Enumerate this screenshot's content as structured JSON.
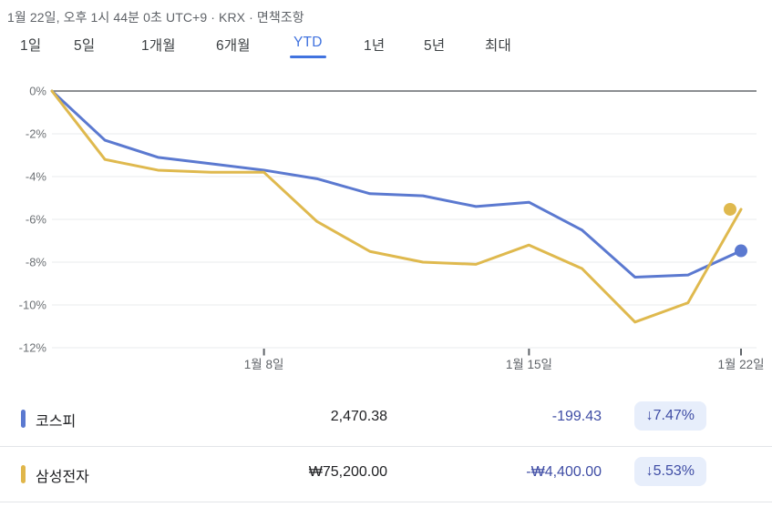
{
  "header": {
    "timestamp": "1월 22일, 오후 1시 44분 0초 UTC+9",
    "separator": "·",
    "exchange": "KRX",
    "disclaimer_label": "면책조항"
  },
  "tabs": {
    "items": [
      {
        "label": "1일",
        "active": false
      },
      {
        "label": "5일",
        "active": false
      },
      {
        "label": "1개월",
        "active": false
      },
      {
        "label": "6개월",
        "active": false
      },
      {
        "label": "YTD",
        "active": true
      },
      {
        "label": "1년",
        "active": false
      },
      {
        "label": "5년",
        "active": false
      },
      {
        "label": "최대",
        "active": false
      }
    ],
    "active_label": "YTD"
  },
  "chart_data": {
    "type": "line",
    "unit": "%",
    "grid": true,
    "ylim": [
      -12,
      0
    ],
    "x_count": 14,
    "ytick_values": [
      0,
      -2,
      -4,
      -6,
      -8,
      -10,
      -12
    ],
    "ytick_labels": [
      "0%",
      "-2%",
      "-4%",
      "-6%",
      "-8%",
      "-10%",
      "-12%"
    ],
    "xticks": [
      {
        "label": "1월 8일",
        "index": 4
      },
      {
        "label": "1월 15일",
        "index": 9
      },
      {
        "label": "1월 22일",
        "index": 13
      }
    ],
    "series": [
      {
        "key": "kospi",
        "name": "코스피",
        "color": "#5b79d0",
        "dot_dx": 0,
        "values": [
          0,
          -2.3,
          -3.1,
          -3.4,
          -3.7,
          -4.1,
          -4.8,
          -4.9,
          -5.4,
          -5.2,
          -6.5,
          -8.7,
          -8.6,
          -7.47
        ]
      },
      {
        "key": "samsung",
        "name": "삼성전자",
        "color": "#dfb94e",
        "dot_dx": -12,
        "values": [
          0,
          -3.2,
          -3.7,
          -3.8,
          -3.8,
          -6.1,
          -7.5,
          -8.0,
          -8.1,
          -7.2,
          -8.3,
          -10.8,
          -9.9,
          -5.53
        ]
      }
    ],
    "axis_colors": {
      "zero_line": "#66696d",
      "gridline": "#e9ebed",
      "tick_text": "#5f6368",
      "ytick_text": "#6d7175"
    }
  },
  "table": {
    "rows": [
      {
        "name": "코스피",
        "indicator_color": "#5b79d0",
        "value": "2,470.38",
        "change": "-199.43",
        "badge": "↓7.47%",
        "direction": "down"
      },
      {
        "name": "삼성전자",
        "indicator_color": "#e0b64a",
        "value": "₩75,200.00",
        "change": "-₩4,400.00",
        "badge": "↓5.53%",
        "direction": "down"
      }
    ]
  }
}
